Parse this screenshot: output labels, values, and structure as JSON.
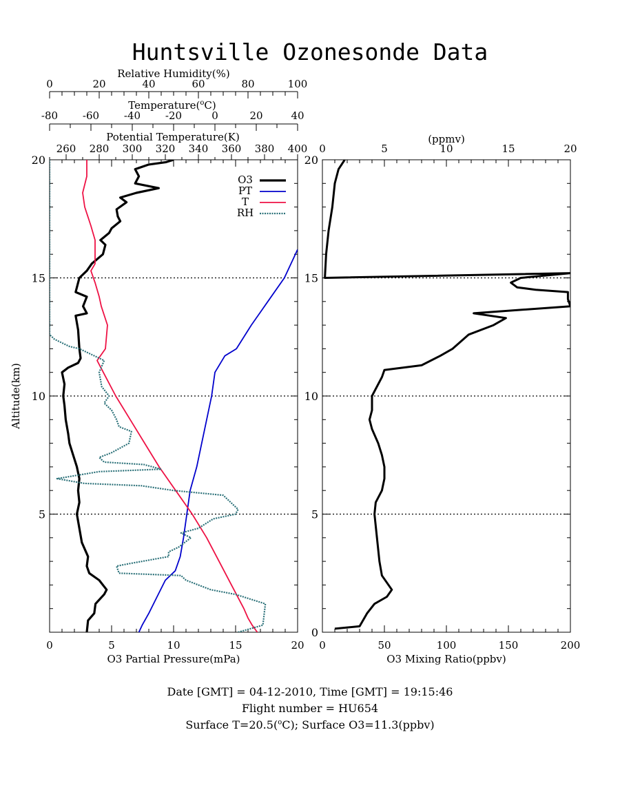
{
  "title": "Huntsville Ozonesonde Data",
  "footer": {
    "line1": "Date [GMT] = 04-12-2010,  Time [GMT] = 19:15:46",
    "line2": "Flight number = HU654",
    "line3_prefix": "Surface T=20.5(",
    "line3_unit": "C); Surface O3=11.3(ppbv)"
  },
  "colors": {
    "O3": "#000000",
    "PT": "#0000cc",
    "T": "#ee1144",
    "RH": "#2a7078"
  },
  "chart_data": [
    {
      "type": "line",
      "ylabel": "Altitude(km)",
      "ylim": [
        0,
        20
      ],
      "y_ticks": [
        "5",
        "10",
        "15",
        "20"
      ],
      "grid": "dotted horizontal lines at 5, 10, 15 km",
      "legend": [
        "O3",
        "PT",
        "T",
        "RH"
      ],
      "axes": {
        "o3": {
          "label": "O3 Partial Pressure(mPa)",
          "range": [
            0,
            20
          ],
          "ticks": [
            "0",
            "5",
            "10",
            "15",
            "20"
          ]
        },
        "pt": {
          "label": "Potential Temperature(K)",
          "range": [
            250,
            400
          ],
          "ticks": [
            "260",
            "280",
            "300",
            "320",
            "340",
            "360",
            "380",
            "400"
          ]
        },
        "t": {
          "label_prefix": "Temperature(",
          "label_suffix": "C)",
          "range": [
            -80,
            40
          ],
          "ticks": [
            "-80",
            "-60",
            "-40",
            "-20",
            "0",
            "20",
            "40"
          ]
        },
        "rh": {
          "label": "Relative Humidity(%)",
          "range": [
            0,
            100
          ],
          "ticks": [
            "0",
            "20",
            "40",
            "60",
            "80",
            "100"
          ]
        }
      },
      "series": [
        {
          "name": "O3",
          "x_axis": "o3",
          "points": [
            [
              3.0,
              0
            ],
            [
              3.1,
              0.5
            ],
            [
              3.6,
              0.8
            ],
            [
              3.7,
              1.2
            ],
            [
              4.4,
              1.6
            ],
            [
              4.6,
              1.8
            ],
            [
              4.0,
              2.2
            ],
            [
              3.2,
              2.5
            ],
            [
              3.0,
              2.8
            ],
            [
              3.1,
              3.2
            ],
            [
              2.6,
              3.8
            ],
            [
              2.4,
              4.4
            ],
            [
              2.2,
              5.0
            ],
            [
              2.4,
              5.5
            ],
            [
              2.3,
              6.0
            ],
            [
              2.4,
              6.5
            ],
            [
              2.2,
              7.0
            ],
            [
              1.9,
              7.5
            ],
            [
              1.6,
              8.0
            ],
            [
              1.5,
              8.4
            ],
            [
              1.3,
              9.0
            ],
            [
              1.2,
              9.6
            ],
            [
              1.1,
              10.0
            ],
            [
              1.2,
              10.5
            ],
            [
              1.0,
              11.0
            ],
            [
              1.5,
              11.2
            ],
            [
              2.3,
              11.4
            ],
            [
              2.5,
              11.6
            ],
            [
              2.4,
              12.0
            ],
            [
              2.3,
              12.8
            ],
            [
              2.1,
              13.4
            ],
            [
              3.0,
              13.5
            ],
            [
              2.7,
              13.8
            ],
            [
              3.0,
              14.2
            ],
            [
              2.1,
              14.4
            ],
            [
              2.3,
              14.8
            ],
            [
              2.4,
              15.0
            ],
            [
              3.0,
              15.3
            ],
            [
              3.4,
              15.6
            ],
            [
              4.3,
              16.0
            ],
            [
              4.5,
              16.4
            ],
            [
              4.1,
              16.6
            ],
            [
              4.8,
              16.9
            ],
            [
              5.0,
              17.1
            ],
            [
              5.7,
              17.4
            ],
            [
              5.5,
              17.6
            ],
            [
              5.4,
              17.9
            ],
            [
              6.2,
              18.2
            ],
            [
              5.7,
              18.4
            ],
            [
              7.0,
              18.6
            ],
            [
              8.8,
              18.8
            ],
            [
              6.9,
              19.0
            ],
            [
              7.2,
              19.3
            ],
            [
              6.9,
              19.6
            ],
            [
              8.0,
              19.8
            ],
            [
              9.4,
              19.9
            ],
            [
              10.0,
              20.0
            ]
          ]
        },
        {
          "name": "PT",
          "x_axis": "pt",
          "points": [
            [
              304,
              0
            ],
            [
              306,
              0.3
            ],
            [
              310,
              0.8
            ],
            [
              315,
              1.5
            ],
            [
              320,
              2.2
            ],
            [
              326,
              2.6
            ],
            [
              329,
              3.2
            ],
            [
              331,
              4.0
            ],
            [
              333,
              5.0
            ],
            [
              335,
              6.0
            ],
            [
              339,
              7.0
            ],
            [
              342,
              8.0
            ],
            [
              345,
              9.0
            ],
            [
              348,
              10.0
            ],
            [
              350,
              11.0
            ],
            [
              356,
              11.7
            ],
            [
              363,
              12.0
            ],
            [
              372,
              13.0
            ],
            [
              382,
              14.0
            ],
            [
              392,
              15.0
            ],
            [
              400,
              16.2
            ]
          ]
        },
        {
          "name": "T",
          "x_axis": "t",
          "points": [
            [
              20.5,
              0
            ],
            [
              18,
              0.3
            ],
            [
              16,
              0.6
            ],
            [
              14,
              1.0
            ],
            [
              8,
              2.0
            ],
            [
              2,
              3.0
            ],
            [
              -4,
              4.0
            ],
            [
              -11,
              5.0
            ],
            [
              -19,
              6.0
            ],
            [
              -27,
              7.0
            ],
            [
              -34,
              8.0
            ],
            [
              -41,
              9.0
            ],
            [
              -48,
              10.0
            ],
            [
              -54,
              11.0
            ],
            [
              -57,
              11.5
            ],
            [
              -53,
              12.0
            ],
            [
              -52,
              13.0
            ],
            [
              -55,
              13.8
            ],
            [
              -56,
              14.2
            ],
            [
              -58,
              14.8
            ],
            [
              -60,
              15.3
            ],
            [
              -58,
              15.6
            ],
            [
              -58,
              16.0
            ],
            [
              -58,
              16.6
            ],
            [
              -60,
              17.2
            ],
            [
              -63,
              18.0
            ],
            [
              -64,
              18.6
            ],
            [
              -62,
              19.3
            ],
            [
              -62,
              20.0
            ]
          ]
        },
        {
          "name": "RH",
          "x_axis": "rh",
          "points": [
            [
              76,
              0
            ],
            [
              86,
              0.3
            ],
            [
              87,
              1.2
            ],
            [
              75,
              1.6
            ],
            [
              65,
              1.8
            ],
            [
              55,
              2.2
            ],
            [
              53,
              2.4
            ],
            [
              28,
              2.5
            ],
            [
              27,
              2.8
            ],
            [
              32,
              2.9
            ],
            [
              48,
              3.2
            ],
            [
              48,
              3.4
            ],
            [
              52,
              3.6
            ],
            [
              57,
              4.0
            ],
            [
              53,
              4.2
            ],
            [
              60,
              4.4
            ],
            [
              66,
              4.8
            ],
            [
              75,
              5.0
            ],
            [
              76,
              5.2
            ],
            [
              70,
              5.8
            ],
            [
              50,
              6.0
            ],
            [
              37,
              6.2
            ],
            [
              14,
              6.3
            ],
            [
              3,
              6.5
            ],
            [
              20,
              6.8
            ],
            [
              45,
              6.9
            ],
            [
              38,
              7.1
            ],
            [
              22,
              7.2
            ],
            [
              20,
              7.4
            ],
            [
              25,
              7.6
            ],
            [
              32,
              8.0
            ],
            [
              33,
              8.5
            ],
            [
              28,
              8.7
            ],
            [
              27,
              9.0
            ],
            [
              25,
              9.4
            ],
            [
              22,
              9.7
            ],
            [
              24,
              10.0
            ],
            [
              21,
              10.4
            ],
            [
              20,
              11.0
            ],
            [
              22,
              11.5
            ],
            [
              12,
              12.0
            ],
            [
              8,
              12.1
            ],
            [
              2,
              12.4
            ],
            [
              0,
              12.6
            ],
            [
              0,
              20
            ]
          ]
        }
      ]
    },
    {
      "type": "line",
      "xlabel": "O3 Mixing Ratio(ppbv)",
      "xlim": [
        0,
        200
      ],
      "x_ticks": [
        "0",
        "50",
        "100",
        "150",
        "200"
      ],
      "top_label": "(ppmv)",
      "top_range": [
        0,
        20
      ],
      "top_ticks": [
        "0",
        "5",
        "10",
        "15",
        "20"
      ],
      "ylim": [
        0,
        20
      ],
      "y_ticks": [
        "0",
        "5",
        "10",
        "15",
        "20"
      ],
      "grid": "dotted horizontal lines at 5, 10, 15 km",
      "series": [
        {
          "name": "O3",
          "points": [
            [
              10,
              0.15
            ],
            [
              30,
              0.25
            ],
            [
              36,
              0.8
            ],
            [
              42,
              1.2
            ],
            [
              52,
              1.5
            ],
            [
              56,
              1.8
            ],
            [
              48,
              2.4
            ],
            [
              46,
              3.0
            ],
            [
              44,
              4.0
            ],
            [
              42,
              5.0
            ],
            [
              43,
              5.5
            ],
            [
              48,
              6.0
            ],
            [
              50,
              6.5
            ],
            [
              50,
              7.0
            ],
            [
              48,
              7.5
            ],
            [
              45,
              8.0
            ],
            [
              40,
              8.6
            ],
            [
              38,
              9.0
            ],
            [
              40,
              9.4
            ],
            [
              40,
              10.0
            ],
            [
              48,
              10.8
            ],
            [
              50,
              11.1
            ],
            [
              80,
              11.3
            ],
            [
              95,
              11.7
            ],
            [
              105,
              12.0
            ],
            [
              118,
              12.6
            ],
            [
              138,
              13.0
            ],
            [
              148,
              13.3
            ],
            [
              122,
              13.5
            ],
            [
              200,
              13.8
            ],
            [
              198,
              14.1
            ],
            [
              198,
              14.4
            ],
            [
              172,
              14.5
            ],
            [
              157,
              14.6
            ],
            [
              152,
              14.8
            ],
            [
              160,
              15.0
            ],
            [
              200,
              15.2
            ],
            [
              2,
              15.0
            ],
            [
              3,
              16.0
            ],
            [
              5,
              17.0
            ],
            [
              8,
              18.0
            ],
            [
              10,
              19.0
            ],
            [
              13,
              19.6
            ],
            [
              18,
              20.0
            ]
          ]
        }
      ]
    }
  ]
}
